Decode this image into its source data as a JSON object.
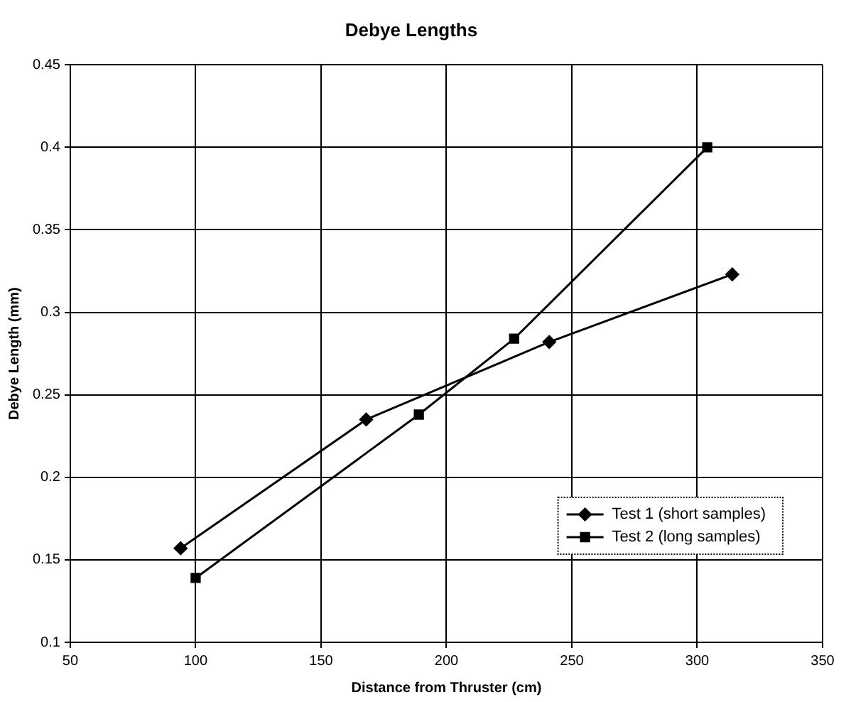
{
  "chart_data": {
    "type": "line",
    "title": "Debye Lengths",
    "xlabel": "Distance from Thruster (cm)",
    "ylabel": "Debye Length (mm)",
    "series": [
      {
        "name": "Test 1 (short samples)",
        "color": "#000000",
        "marker": "diamond",
        "x": [
          94,
          168,
          241,
          314
        ],
        "values": [
          0.157,
          0.235,
          0.282,
          0.323
        ]
      },
      {
        "name": "Test 2 (long samples)",
        "color": "#000000",
        "marker": "square",
        "x": [
          100,
          189,
          227,
          304
        ],
        "values": [
          0.139,
          0.238,
          0.284,
          0.4
        ]
      }
    ],
    "xlim": [
      50,
      350
    ],
    "xticks": [
      50,
      100,
      150,
      200,
      250,
      300,
      350
    ],
    "ylim": [
      0.1,
      0.45
    ],
    "yticks": [
      0.1,
      0.15,
      0.2,
      0.25,
      0.3,
      0.35,
      0.4,
      0.45
    ],
    "grid": true,
    "legend": "bottom right"
  }
}
